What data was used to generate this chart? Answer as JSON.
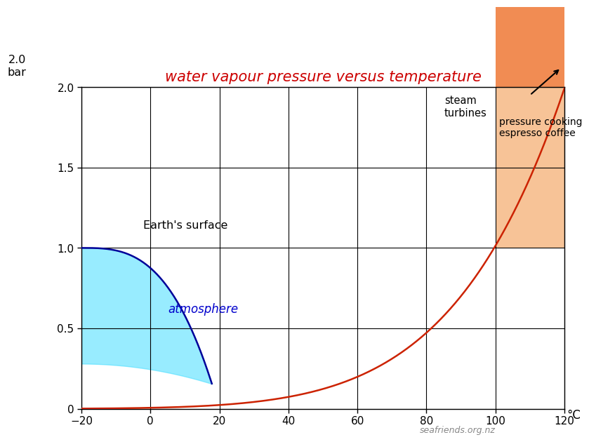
{
  "title": "water vapour pressure versus temperature",
  "title_color": "#cc0000",
  "title_fontsize": 15,
  "watermark": "seafriends.org.nz",
  "xlim": [
    -20,
    120
  ],
  "ylim": [
    0,
    2.0
  ],
  "xticks": [
    -20,
    0,
    20,
    40,
    60,
    80,
    100,
    120
  ],
  "yticks": [
    0,
    0.5,
    1.0,
    1.5,
    2.0
  ],
  "ytick_labels": [
    "0",
    "0.5",
    "1.0",
    "1.5",
    "2.0"
  ],
  "bg_color": "#ffffff",
  "curve_color": "#cc2200",
  "atm_curve_color": "#000099",
  "atm_fill_color": "#44ddff",
  "atm_fill_alpha": 0.55,
  "pressure_cooking_color": "#f4a460",
  "pressure_cooking_alpha": 0.65,
  "steam_color": "#f08040",
  "steam_alpha": 0.9,
  "label_earths": "Earth's surface",
  "label_atm": "atmosphere",
  "label_pc_line1": "pressure cooking",
  "label_pc_line2": "espresso coffee",
  "label_st_line1": "steam",
  "label_st_line2": "turbines",
  "ylabel_above": "2.0\nbar"
}
